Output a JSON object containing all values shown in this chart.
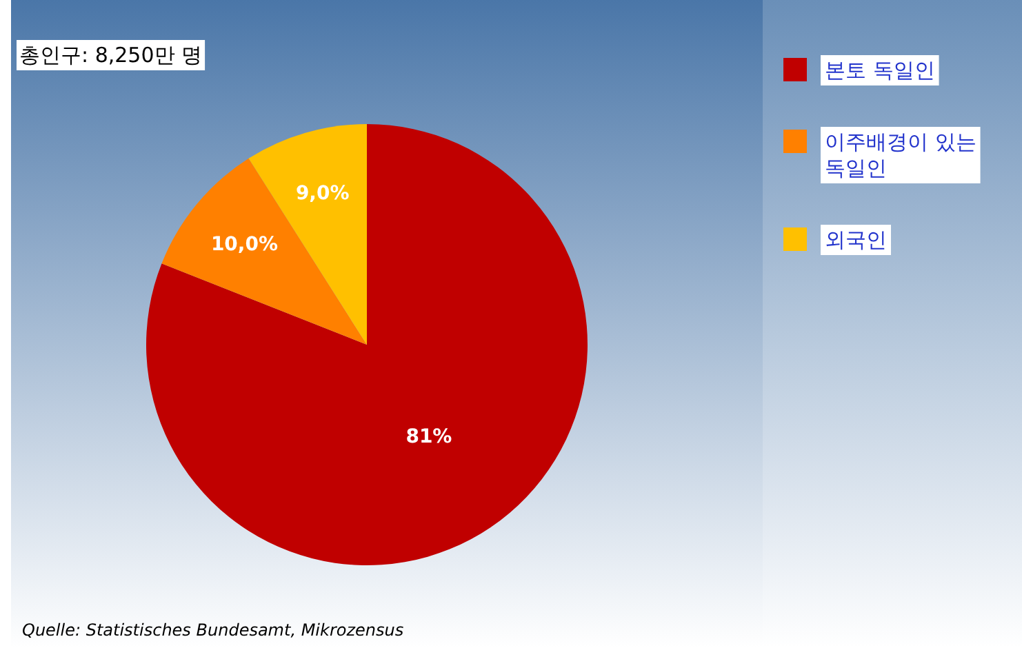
{
  "chart_data": {
    "type": "pie",
    "title": "총인구: 8,250만 명",
    "categories": [
      "본토 독일인",
      "이주배경이 있는 독일인",
      "외국인"
    ],
    "values": [
      81,
      10.0,
      9.0
    ],
    "value_labels": [
      "81%",
      "10,0%",
      "9,0%"
    ],
    "colors": [
      "#c00000",
      "#ff8000",
      "#ffc000"
    ],
    "legend": "right",
    "annotations": [
      "Quelle: Statistisches Bundesamt, Mikrozensus"
    ]
  }
}
